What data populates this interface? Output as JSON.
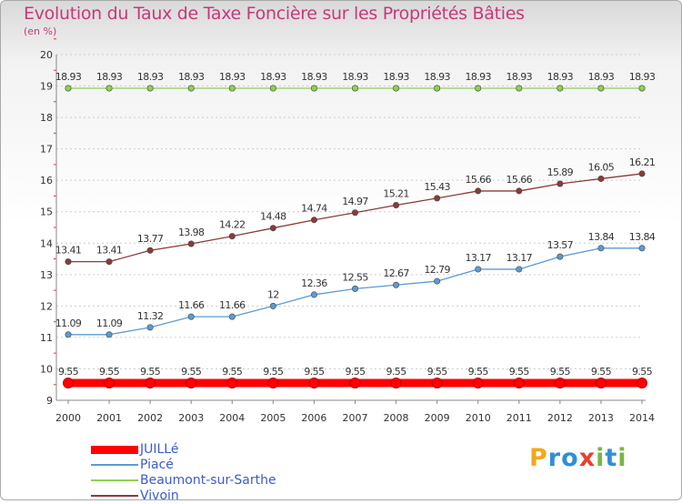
{
  "header": {
    "title": "Evolution du Taux de Taxe Foncière sur les Propriétés Bâties",
    "unit": "(en %)"
  },
  "chart_data": {
    "type": "line",
    "title": "Evolution du Taux de Taxe Foncière sur les Propriétés Bâties",
    "ylabel": "(en %)",
    "xlabel": "",
    "ylim": [
      9,
      20
    ],
    "yticks": [
      "9",
      "10",
      "11",
      "12",
      "13",
      "14",
      "15",
      "16",
      "17",
      "18",
      "19",
      "20"
    ],
    "categories": [
      "2000",
      "2001",
      "2002",
      "2003",
      "2004",
      "2005",
      "2006",
      "2007",
      "2008",
      "2009",
      "2010",
      "2011",
      "2012",
      "2013",
      "2014"
    ],
    "series": [
      {
        "name": "JUILLé",
        "color": "#ff0000",
        "labels": [
          "9.55",
          "9.55",
          "9.55",
          "9.55",
          "9.55",
          "9.55",
          "9.55",
          "9.55",
          "9.55",
          "9.55",
          "9.55",
          "9.55",
          "9.55",
          "9.55",
          "9.55"
        ],
        "values": [
          9.55,
          9.55,
          9.55,
          9.55,
          9.55,
          9.55,
          9.55,
          9.55,
          9.55,
          9.55,
          9.55,
          9.55,
          9.55,
          9.55,
          9.55
        ]
      },
      {
        "name": "Piacé",
        "color": "#5b9bd5",
        "labels": [
          "11.09",
          "11.09",
          "11.32",
          "11.66",
          "11.66",
          "12",
          "12.36",
          "12.55",
          "12.67",
          "12.79",
          "13.17",
          "13.17",
          "13.57",
          "13.84",
          "13.84"
        ],
        "values": [
          11.09,
          11.09,
          11.32,
          11.66,
          11.66,
          12,
          12.36,
          12.55,
          12.67,
          12.79,
          13.17,
          13.17,
          13.57,
          13.84,
          13.84
        ]
      },
      {
        "name": "Beaumont-sur-Sarthe",
        "color": "#8fd14f",
        "labels": [
          "18.93",
          "18.93",
          "18.93",
          "18.93",
          "18.93",
          "18.93",
          "18.93",
          "18.93",
          "18.93",
          "18.93",
          "18.93",
          "18.93",
          "18.93",
          "18.93",
          "18.93"
        ],
        "values": [
          18.93,
          18.93,
          18.93,
          18.93,
          18.93,
          18.93,
          18.93,
          18.93,
          18.93,
          18.93,
          18.93,
          18.93,
          18.93,
          18.93,
          18.93
        ]
      },
      {
        "name": "Vivoin",
        "color": "#8b3a3a",
        "labels": [
          "13.41",
          "13.41",
          "13.77",
          "13.98",
          "14.22",
          "14.48",
          "14.74",
          "14.97",
          "15.21",
          "15.43",
          "15.66",
          "15.66",
          "15.89",
          "16.05",
          "16.21"
        ],
        "values": [
          13.41,
          13.41,
          13.77,
          13.98,
          14.22,
          14.48,
          14.74,
          14.97,
          15.21,
          15.43,
          15.66,
          15.66,
          15.89,
          16.05,
          16.21
        ]
      }
    ]
  },
  "legend": {
    "items": [
      {
        "label": "JUILLé",
        "color": "#ff0000"
      },
      {
        "label": "Piacé",
        "color": "#5b9bd5"
      },
      {
        "label": "Beaumont-sur-Sarthe",
        "color": "#8fd14f"
      },
      {
        "label": "Vivoin",
        "color": "#8b3a3a"
      }
    ]
  },
  "brand": {
    "letters": [
      "P",
      "r",
      "o",
      "x",
      "i",
      "t",
      "i"
    ],
    "colors": [
      "#f2a81d",
      "#2f8fd8",
      "#2f8fd8",
      "#e8412c",
      "#7ab648",
      "#2f8fd8",
      "#7ab648"
    ]
  }
}
